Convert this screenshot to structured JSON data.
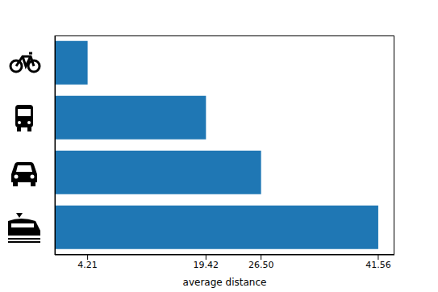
{
  "chart_data": {
    "type": "bar",
    "orientation": "horizontal",
    "categories": [
      null,
      null,
      null,
      null
    ],
    "values": [
      4.21,
      19.42,
      26.5,
      41.56
    ],
    "color": "#1f77b4",
    "xlabel": "average distance",
    "xlim": [
      0,
      43.64
    ],
    "xticks": [
      4.21,
      19.42,
      {
        "value": 26.5,
        "label": "26.50"
      },
      41.56
    ],
    "grid": false,
    "tick_labels": "x"
  }
}
